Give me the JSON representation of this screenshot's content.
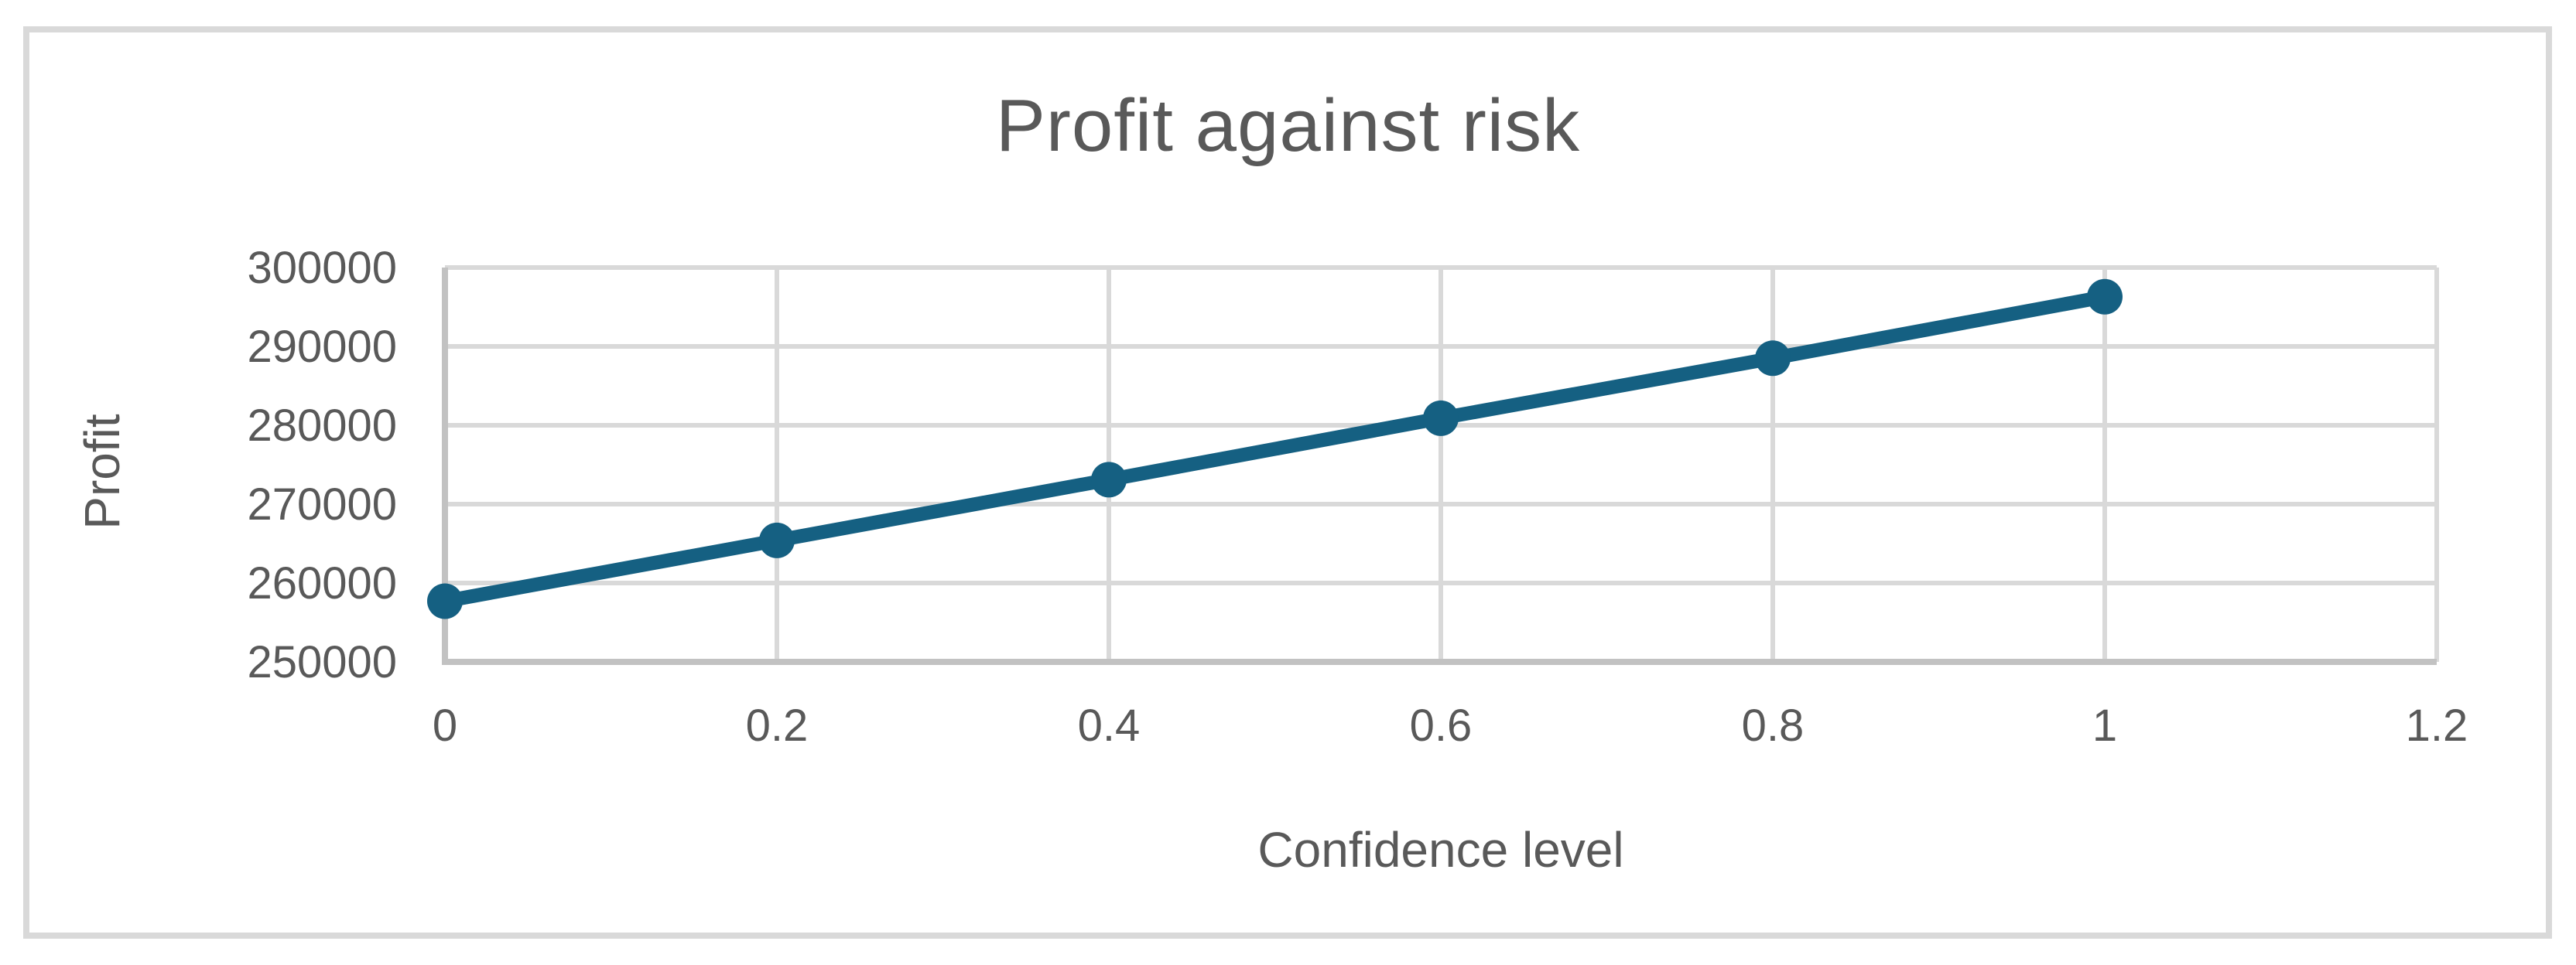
{
  "chart": {
    "title": "Profit against risk",
    "x_axis_title": "Confidence level",
    "y_axis_title": "Profit"
  },
  "chart_data": {
    "type": "line",
    "title": "Profit against risk",
    "xlabel": "Confidence level",
    "ylabel": "Profit",
    "x": [
      0,
      0.2,
      0.4,
      0.6,
      0.8,
      1.0
    ],
    "values": [
      257700,
      265400,
      273100,
      280900,
      288500,
      296300
    ],
    "series": [
      {
        "name": "Profit",
        "values": [
          257700,
          265400,
          273100,
          280900,
          288500,
          296300
        ]
      }
    ],
    "xlim": [
      0,
      1.2
    ],
    "ylim": [
      250000,
      300000
    ],
    "x_tick_labels": [
      "0",
      "0.2",
      "0.4",
      "0.6",
      "0.8",
      "1",
      "1.2"
    ],
    "x_tick_values": [
      0,
      0.2,
      0.4,
      0.6,
      0.8,
      1.0,
      1.2
    ],
    "y_tick_labels": [
      "250000",
      "260000",
      "270000",
      "280000",
      "290000",
      "300000"
    ],
    "y_tick_values": [
      250000,
      260000,
      270000,
      280000,
      290000,
      300000
    ],
    "grid": true,
    "legend_position": "none",
    "marker": "circle",
    "colors": {
      "series": "#156082",
      "text": "#595959",
      "gridline": "#D9D9D9",
      "axis_line": "#C2C2C2",
      "chart_border": "#D9D9D9",
      "background": "#FFFFFF"
    }
  }
}
